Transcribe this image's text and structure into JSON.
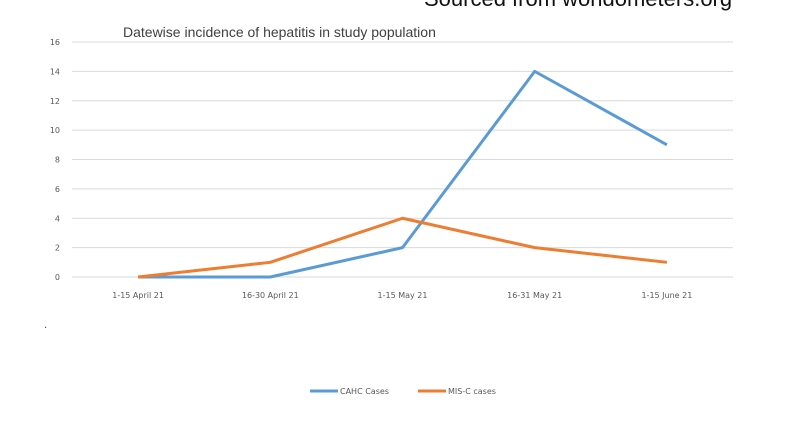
{
  "header": {
    "source_note": "Sourced from worldometers.org"
  },
  "stray_mark": ".",
  "chart_data": {
    "type": "line",
    "title": "Datewise incidence of hepatitis in study population",
    "categories": [
      "1-15 April 21",
      "16-30 April 21",
      "1-15 May 21",
      "16-31 May 21",
      "1-15 June 21"
    ],
    "series": [
      {
        "name": "CAHC Cases",
        "values": [
          0,
          0,
          2,
          14,
          9
        ],
        "color": "#5b9bd5"
      },
      {
        "name": "MIS-C cases",
        "values": [
          0,
          1,
          4,
          2,
          1
        ],
        "color": "#ed7d31"
      }
    ],
    "ylim": [
      0,
      16
    ],
    "yticks": [
      0,
      2,
      4,
      6,
      8,
      10,
      12,
      14,
      16
    ],
    "grid": true,
    "legend": "bottom"
  }
}
